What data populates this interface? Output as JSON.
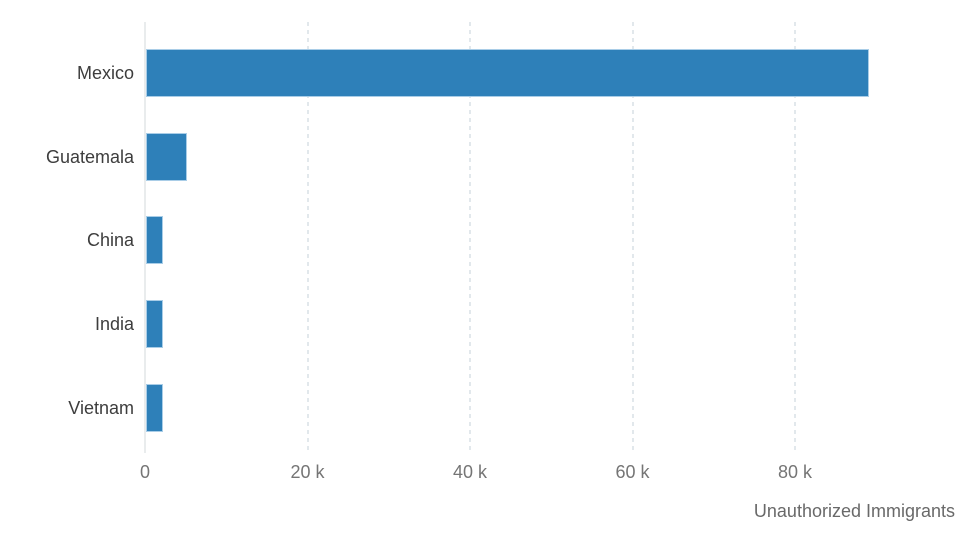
{
  "chart_data": {
    "type": "bar",
    "orientation": "horizontal",
    "title": "",
    "xlabel": "Unauthorized Immigrants",
    "ylabel": "",
    "categories": [
      "Mexico",
      "Guatemala",
      "China",
      "India",
      "Vietnam"
    ],
    "values": [
      89000,
      5100,
      2100,
      2100,
      2100
    ],
    "xlim": [
      0,
      100000
    ],
    "xticks": [
      {
        "value": 0,
        "label": "0"
      },
      {
        "value": 20000,
        "label": "20 k"
      },
      {
        "value": 40000,
        "label": "40 k"
      },
      {
        "value": 60000,
        "label": "60 k"
      },
      {
        "value": 80000,
        "label": "80 k"
      }
    ],
    "grid": "vertical-dashed",
    "legend": "none",
    "colors": {
      "bar_fill": "#2e80b9",
      "bar_edge": "#a9cde7",
      "gridline": "#e2e8ec",
      "zero_line": "#e9eced",
      "tick_label": "#757575",
      "category_label": "#3d3d3d",
      "axis_title": "#696969",
      "background": "#ffffff"
    }
  }
}
